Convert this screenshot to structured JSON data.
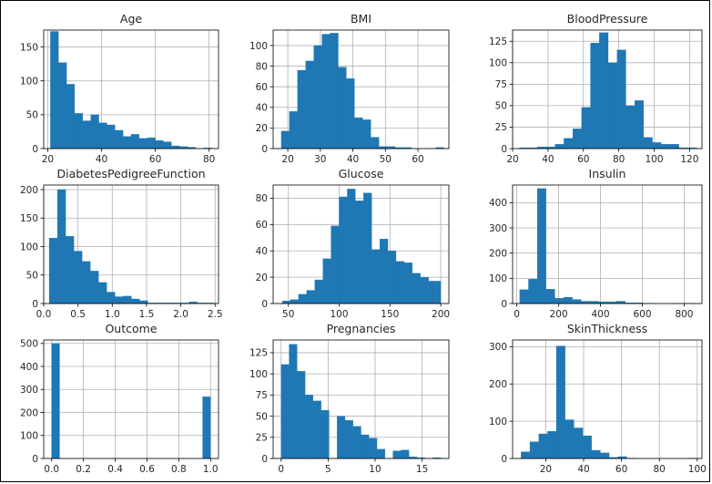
{
  "colors": {
    "bar": "#1f77b4",
    "grid": "#b0b0b0",
    "text": "#262626"
  },
  "chart_data": [
    {
      "type": "bar",
      "title": "Age",
      "xlim": [
        18.5,
        83.5
      ],
      "ylim": [
        0,
        175
      ],
      "xticks": [
        20,
        40,
        60,
        80
      ],
      "yticks": [
        0,
        50,
        100,
        150
      ],
      "bins": [
        [
          21,
          24,
          173
        ],
        [
          24,
          27,
          127
        ],
        [
          27,
          30,
          95
        ],
        [
          30,
          33,
          52
        ],
        [
          33,
          36,
          41
        ],
        [
          36,
          39,
          50
        ],
        [
          39,
          42,
          38
        ],
        [
          42,
          45,
          35
        ],
        [
          45,
          48,
          27
        ],
        [
          48,
          51,
          18
        ],
        [
          51,
          54,
          21
        ],
        [
          54,
          57,
          15
        ],
        [
          57,
          60,
          16
        ],
        [
          60,
          63,
          12
        ],
        [
          63,
          66,
          10
        ],
        [
          66,
          69,
          4
        ],
        [
          69,
          72,
          3
        ],
        [
          72,
          75,
          2
        ],
        [
          75,
          78,
          0
        ],
        [
          78,
          81,
          1
        ]
      ]
    },
    {
      "type": "bar",
      "title": "BMI",
      "xlim": [
        15.5,
        69.5
      ],
      "ylim": [
        0,
        115
      ],
      "xticks": [
        20,
        30,
        40,
        50,
        60
      ],
      "yticks": [
        0,
        20,
        40,
        60,
        80,
        100
      ],
      "bins": [
        [
          18,
          20.5,
          17
        ],
        [
          20.5,
          23,
          36
        ],
        [
          23,
          25.5,
          76
        ],
        [
          25.5,
          28,
          85
        ],
        [
          28,
          30.5,
          100
        ],
        [
          30.5,
          33,
          111
        ],
        [
          33,
          35.5,
          112
        ],
        [
          35.5,
          38,
          79
        ],
        [
          38,
          40.5,
          68
        ],
        [
          40.5,
          43,
          30
        ],
        [
          43,
          45.5,
          28
        ],
        [
          45.5,
          48,
          11
        ],
        [
          48,
          50.5,
          2
        ],
        [
          50.5,
          53,
          2
        ],
        [
          53,
          55.5,
          1
        ],
        [
          55.5,
          58,
          1
        ],
        [
          58,
          60.5,
          0
        ],
        [
          60.5,
          63,
          0
        ],
        [
          63,
          65.5,
          0
        ],
        [
          65.5,
          68,
          1
        ]
      ]
    },
    {
      "type": "bar",
      "title": "BloodPressure",
      "xlim": [
        20,
        127
      ],
      "ylim": [
        0,
        138
      ],
      "xticks": [
        20,
        40,
        60,
        80,
        100,
        120
      ],
      "yticks": [
        0,
        25,
        50,
        75,
        100,
        125
      ],
      "bins": [
        [
          24,
          29,
          1
        ],
        [
          29,
          34,
          1
        ],
        [
          34,
          39,
          2
        ],
        [
          39,
          44,
          2
        ],
        [
          44,
          49,
          5
        ],
        [
          49,
          54,
          12
        ],
        [
          54,
          59,
          23
        ],
        [
          59,
          64,
          48
        ],
        [
          64,
          69,
          123
        ],
        [
          69,
          74,
          135
        ],
        [
          74,
          79,
          100
        ],
        [
          79,
          84,
          115
        ],
        [
          84,
          89,
          50
        ],
        [
          89,
          94,
          56
        ],
        [
          94,
          99,
          13
        ],
        [
          99,
          104,
          7
        ],
        [
          104,
          109,
          5
        ],
        [
          109,
          114,
          5
        ],
        [
          114,
          119,
          1
        ],
        [
          119,
          124,
          1
        ]
      ]
    },
    {
      "type": "bar",
      "title": "DiabetesPedigreeFunction",
      "xlim": [
        0,
        2.55
      ],
      "ylim": [
        0,
        208
      ],
      "xticks": [
        0.0,
        0.5,
        1.0,
        1.5,
        2.0,
        2.5
      ],
      "yticks": [
        0,
        50,
        100,
        150,
        200
      ],
      "bins": [
        [
          0.08,
          0.2,
          115
        ],
        [
          0.2,
          0.32,
          200
        ],
        [
          0.32,
          0.44,
          118
        ],
        [
          0.44,
          0.56,
          92
        ],
        [
          0.56,
          0.68,
          74
        ],
        [
          0.68,
          0.8,
          57
        ],
        [
          0.8,
          0.92,
          37
        ],
        [
          0.92,
          1.04,
          20
        ],
        [
          1.04,
          1.16,
          12
        ],
        [
          1.16,
          1.28,
          13
        ],
        [
          1.28,
          1.4,
          8
        ],
        [
          1.4,
          1.52,
          5
        ],
        [
          1.52,
          1.64,
          1
        ],
        [
          1.64,
          1.76,
          1
        ],
        [
          1.76,
          1.88,
          1
        ],
        [
          1.88,
          2.0,
          1
        ],
        [
          2.0,
          2.12,
          1
        ],
        [
          2.12,
          2.24,
          3
        ],
        [
          2.24,
          2.36,
          1
        ],
        [
          2.36,
          2.48,
          1
        ]
      ]
    },
    {
      "type": "bar",
      "title": "Glucose",
      "xlim": [
        35,
        208
      ],
      "ylim": [
        0,
        90
      ],
      "xticks": [
        50,
        100,
        150,
        200
      ],
      "yticks": [
        0,
        20,
        40,
        60,
        80
      ],
      "bins": [
        [
          44,
          52,
          2
        ],
        [
          52,
          60,
          3
        ],
        [
          60,
          68,
          7
        ],
        [
          68,
          76,
          10
        ],
        [
          76,
          84,
          18
        ],
        [
          84,
          92,
          34
        ],
        [
          92,
          100,
          59
        ],
        [
          100,
          108,
          81
        ],
        [
          108,
          116,
          87
        ],
        [
          116,
          124,
          78
        ],
        [
          124,
          132,
          84
        ],
        [
          132,
          140,
          41
        ],
        [
          140,
          148,
          49
        ],
        [
          148,
          156,
          40
        ],
        [
          156,
          164,
          32
        ],
        [
          164,
          172,
          31
        ],
        [
          172,
          180,
          23
        ],
        [
          180,
          188,
          20
        ],
        [
          188,
          196,
          17
        ],
        [
          196,
          200,
          17
        ]
      ]
    },
    {
      "type": "bar",
      "title": "Insulin",
      "xlim": [
        -20,
        885
      ],
      "ylim": [
        0,
        470
      ],
      "xticks": [
        0,
        200,
        400,
        600,
        800
      ],
      "yticks": [
        0,
        100,
        200,
        300,
        400
      ],
      "bins": [
        [
          14,
          56,
          55
        ],
        [
          56,
          98,
          97
        ],
        [
          98,
          140,
          456
        ],
        [
          140,
          182,
          57
        ],
        [
          182,
          224,
          21
        ],
        [
          224,
          266,
          25
        ],
        [
          266,
          308,
          16
        ],
        [
          308,
          350,
          9
        ],
        [
          350,
          392,
          9
        ],
        [
          392,
          434,
          7
        ],
        [
          434,
          476,
          7
        ],
        [
          476,
          518,
          9
        ],
        [
          518,
          560,
          3
        ],
        [
          560,
          602,
          3
        ],
        [
          602,
          644,
          1
        ],
        [
          644,
          686,
          0
        ],
        [
          686,
          728,
          0
        ],
        [
          728,
          770,
          0
        ],
        [
          770,
          812,
          1
        ],
        [
          812,
          846,
          1
        ]
      ]
    },
    {
      "type": "bar",
      "title": "Outcome",
      "xlim": [
        -0.05,
        1.05
      ],
      "ylim": [
        0,
        515
      ],
      "xticks": [
        0.0,
        0.2,
        0.4,
        0.6,
        0.8,
        1.0
      ],
      "yticks": [
        0,
        100,
        200,
        300,
        400,
        500
      ],
      "bins": [
        [
          0,
          0.05,
          500
        ],
        [
          0.95,
          1,
          268
        ]
      ]
    },
    {
      "type": "bar",
      "title": "Pregnancies",
      "xlim": [
        -0.85,
        17.85
      ],
      "ylim": [
        0,
        140
      ],
      "xticks": [
        0,
        5,
        10,
        15
      ],
      "yticks": [
        0,
        25,
        50,
        75,
        100,
        125
      ],
      "bins": [
        [
          0,
          0.85,
          111
        ],
        [
          0.85,
          1.7,
          135
        ],
        [
          1.7,
          2.55,
          103
        ],
        [
          2.55,
          3.4,
          75
        ],
        [
          3.4,
          4.25,
          68
        ],
        [
          4.25,
          5.1,
          57
        ],
        [
          5.1,
          5.95,
          0
        ],
        [
          5.95,
          6.8,
          50
        ],
        [
          6.8,
          7.65,
          45
        ],
        [
          7.65,
          8.5,
          38
        ],
        [
          8.5,
          9.35,
          28
        ],
        [
          9.35,
          10.2,
          24
        ],
        [
          10.2,
          11.05,
          11
        ],
        [
          11.05,
          11.9,
          0
        ],
        [
          11.9,
          12.75,
          9
        ],
        [
          12.75,
          13.6,
          10
        ],
        [
          13.6,
          14.45,
          2
        ],
        [
          14.45,
          15.3,
          1
        ],
        [
          15.3,
          16.15,
          0
        ],
        [
          16.15,
          17,
          1
        ]
      ]
    },
    {
      "type": "bar",
      "title": "SkinThickness",
      "xlim": [
        2.5,
        102.5
      ],
      "ylim": [
        0,
        318
      ],
      "xticks": [
        20,
        40,
        60,
        80,
        100
      ],
      "yticks": [
        0,
        100,
        200,
        300
      ],
      "bins": [
        [
          7,
          11.65,
          18
        ],
        [
          11.65,
          16.3,
          45
        ],
        [
          16.3,
          20.95,
          66
        ],
        [
          20.95,
          25.6,
          73
        ],
        [
          25.6,
          30.25,
          302
        ],
        [
          30.25,
          34.9,
          104
        ],
        [
          34.9,
          39.55,
          82
        ],
        [
          39.55,
          44.2,
          61
        ],
        [
          44.2,
          48.85,
          22
        ],
        [
          48.85,
          53.5,
          15
        ],
        [
          53.5,
          58.15,
          3
        ],
        [
          58.15,
          62.8,
          5
        ],
        [
          62.8,
          67.45,
          1
        ],
        [
          67.45,
          72.1,
          0
        ],
        [
          72.1,
          76.75,
          0
        ],
        [
          76.75,
          81.4,
          0
        ],
        [
          81.4,
          86.05,
          0
        ],
        [
          86.05,
          90.7,
          0
        ],
        [
          90.7,
          95.35,
          0
        ],
        [
          95.35,
          100,
          1
        ]
      ]
    }
  ]
}
